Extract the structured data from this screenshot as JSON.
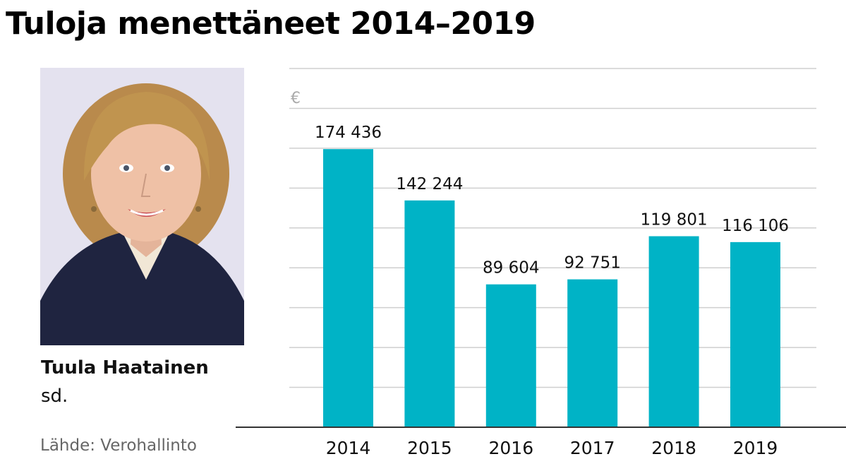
{
  "header": {
    "title": "Tuloja menettäneet 2014–2019"
  },
  "person": {
    "name": "Tuula Haatainen",
    "party": "sd.",
    "photo_icon": "portrait-photo-icon"
  },
  "footer": {
    "source": "Lähde: Verohallinto"
  },
  "colors": {
    "bar": "#00b3c6",
    "grid": "#cfcfcf",
    "axis": "#333333"
  },
  "chart_data": {
    "type": "bar",
    "title": "Tuloja menettäneet 2014–2019",
    "ylabel": "€",
    "xlabel": "",
    "categories": [
      "2014",
      "2015",
      "2016",
      "2017",
      "2018",
      "2019"
    ],
    "values": [
      174436,
      142244,
      89604,
      92751,
      119801,
      116106
    ],
    "value_labels": [
      "174 436",
      "142 244",
      "89 604",
      "92 751",
      "119 801",
      "116 106"
    ],
    "ylim": [
      0,
      225000
    ],
    "grid": true,
    "legend": "none"
  }
}
